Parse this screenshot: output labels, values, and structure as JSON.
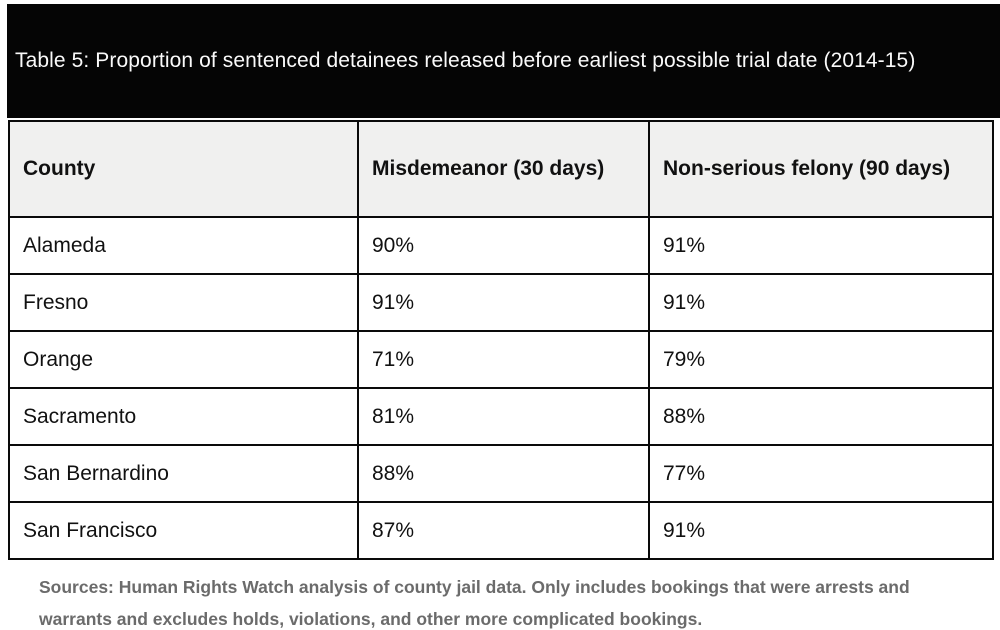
{
  "title_bar": {
    "title": "Table 5: Proportion of sentenced detainees released before earliest possible trial date (2014-15)"
  },
  "chart_data": {
    "type": "table",
    "title": "Table 5: Proportion of sentenced detainees released before earliest possible trial date (2014-15)",
    "columns": [
      "County",
      "Misdemeanor (30 days)",
      "Non-serious felony (90 days)"
    ],
    "rows": [
      [
        "Alameda",
        "90%",
        "91%"
      ],
      [
        "Fresno",
        "91%",
        "91%"
      ],
      [
        "Orange",
        "71%",
        "79%"
      ],
      [
        "Sacramento",
        "81%",
        "88%"
      ],
      [
        "San Bernardino",
        "88%",
        "77%"
      ],
      [
        "San Francisco",
        "87%",
        "91%"
      ]
    ],
    "series": [
      {
        "name": "Misdemeanor (30 days)",
        "values_pct": [
          90,
          91,
          71,
          81,
          88,
          87
        ]
      },
      {
        "name": "Non-serious felony (90 days)",
        "values_pct": [
          91,
          91,
          79,
          88,
          77,
          91
        ]
      }
    ],
    "categories": [
      "Alameda",
      "Fresno",
      "Orange",
      "Sacramento",
      "San Bernardino",
      "San Francisco"
    ]
  },
  "source_note": "Sources: Human Rights Watch analysis of county jail data. Only includes bookings that were arrests and warrants and excludes holds, violations, and other more complicated bookings.",
  "colors": {
    "title_band_bg": "#050505",
    "title_text": "#fafafa",
    "header_row_bg": "#f0f0ef",
    "border": "#0a0a0a",
    "body_text": "#111111",
    "note_text": "#6b6b6b",
    "page_bg": "#ffffff"
  }
}
